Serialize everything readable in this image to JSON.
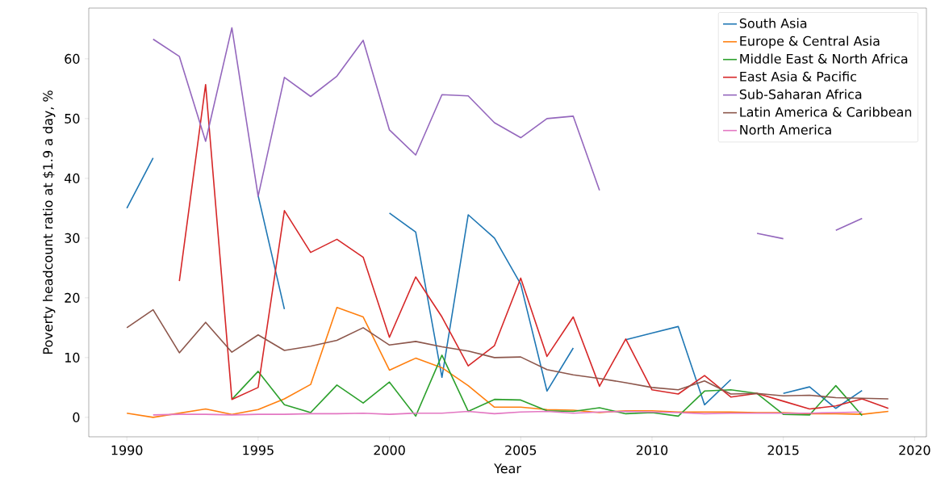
{
  "chart_data": {
    "type": "line",
    "xlabel": "Year",
    "ylabel": "Poverty headcount ratio at $1.9 a day, %",
    "x": [
      1990,
      1991,
      1992,
      1993,
      1994,
      1995,
      1996,
      1997,
      1998,
      1999,
      2000,
      2001,
      2002,
      2003,
      2004,
      2005,
      2006,
      2007,
      2008,
      2009,
      2010,
      2011,
      2012,
      2013,
      2014,
      2015,
      2016,
      2017,
      2018,
      2019
    ],
    "xlim": [
      1988.55,
      2020.45
    ],
    "xticks": [
      1990,
      1995,
      2000,
      2005,
      2010,
      2015,
      2020
    ],
    "ylim": [
      -3.26,
      68.5
    ],
    "yticks": [
      0,
      10,
      20,
      30,
      40,
      50,
      60
    ],
    "grid": false,
    "legend": "top right",
    "marker": "none",
    "line_style": "solid",
    "series": [
      {
        "name": "South Asia",
        "color": "#1f77b4",
        "values": [
          35.0,
          43.4,
          null,
          null,
          null,
          37.1,
          18.1,
          null,
          null,
          null,
          34.2,
          31.0,
          6.7,
          33.9,
          30.0,
          22.3,
          4.4,
          11.6,
          null,
          13.0,
          14.1,
          15.2,
          2.1,
          6.3,
          null,
          4.0,
          5.1,
          1.5,
          4.5,
          null
        ]
      },
      {
        "name": "Europe & Central Asia",
        "color": "#ff7f0e",
        "values": [
          0.7,
          0.0,
          0.7,
          1.4,
          0.5,
          1.3,
          3.1,
          5.5,
          18.4,
          16.8,
          7.9,
          9.9,
          8.3,
          5.3,
          1.7,
          1.7,
          1.3,
          1.2,
          0.8,
          1.1,
          1.1,
          0.9,
          0.9,
          0.9,
          0.8,
          0.8,
          0.6,
          0.6,
          0.5,
          1.0
        ]
      },
      {
        "name": "Middle East & North Africa",
        "color": "#2ca02c",
        "values": [
          null,
          null,
          null,
          null,
          3.0,
          7.7,
          2.1,
          0.8,
          5.4,
          2.4,
          5.9,
          0.2,
          10.4,
          1.0,
          3.0,
          2.9,
          1.1,
          1.0,
          1.6,
          0.6,
          0.8,
          0.2,
          4.4,
          4.6,
          4.0,
          0.5,
          0.4,
          5.3,
          0.3,
          null
        ]
      },
      {
        "name": "East Asia & Pacific",
        "color": "#d62728",
        "values": [
          null,
          null,
          22.8,
          55.7,
          3.0,
          5.0,
          34.6,
          27.6,
          29.8,
          26.8,
          13.4,
          23.5,
          16.8,
          8.6,
          12.0,
          23.3,
          10.2,
          16.8,
          5.2,
          13.1,
          4.6,
          3.9,
          7.0,
          3.4,
          4.0,
          2.7,
          1.4,
          1.9,
          3.1,
          1.5
        ]
      },
      {
        "name": "Sub-Saharan Africa",
        "color": "#9467bd",
        "values": [
          null,
          63.3,
          60.4,
          46.2,
          65.2,
          37.0,
          56.9,
          53.7,
          57.1,
          63.1,
          48.1,
          43.9,
          54.0,
          53.8,
          49.3,
          46.8,
          50.0,
          50.4,
          38.0,
          null,
          null,
          null,
          null,
          null,
          30.8,
          29.9,
          null,
          31.3,
          33.3,
          null
        ]
      },
      {
        "name": "Latin America & Caribbean",
        "color": "#8c564b",
        "values": [
          15.0,
          18.0,
          10.8,
          15.9,
          10.9,
          13.8,
          11.2,
          11.9,
          12.9,
          15.0,
          12.1,
          12.7,
          11.8,
          11.1,
          10.0,
          10.1,
          8.0,
          7.1,
          6.5,
          5.8,
          5.0,
          4.6,
          6.1,
          3.9,
          4.0,
          3.6,
          3.7,
          3.3,
          3.2,
          3.1
        ]
      },
      {
        "name": "North America",
        "color": "#e377c2",
        "values": [
          null,
          0.4,
          0.5,
          0.5,
          0.4,
          0.5,
          0.5,
          0.6,
          0.6,
          0.7,
          0.5,
          0.7,
          0.7,
          1.0,
          0.6,
          0.9,
          1.0,
          0.7,
          0.9,
          1.0,
          0.9,
          0.8,
          0.6,
          0.7,
          0.7,
          0.7,
          0.7,
          0.8,
          0.9,
          null
        ]
      }
    ]
  }
}
